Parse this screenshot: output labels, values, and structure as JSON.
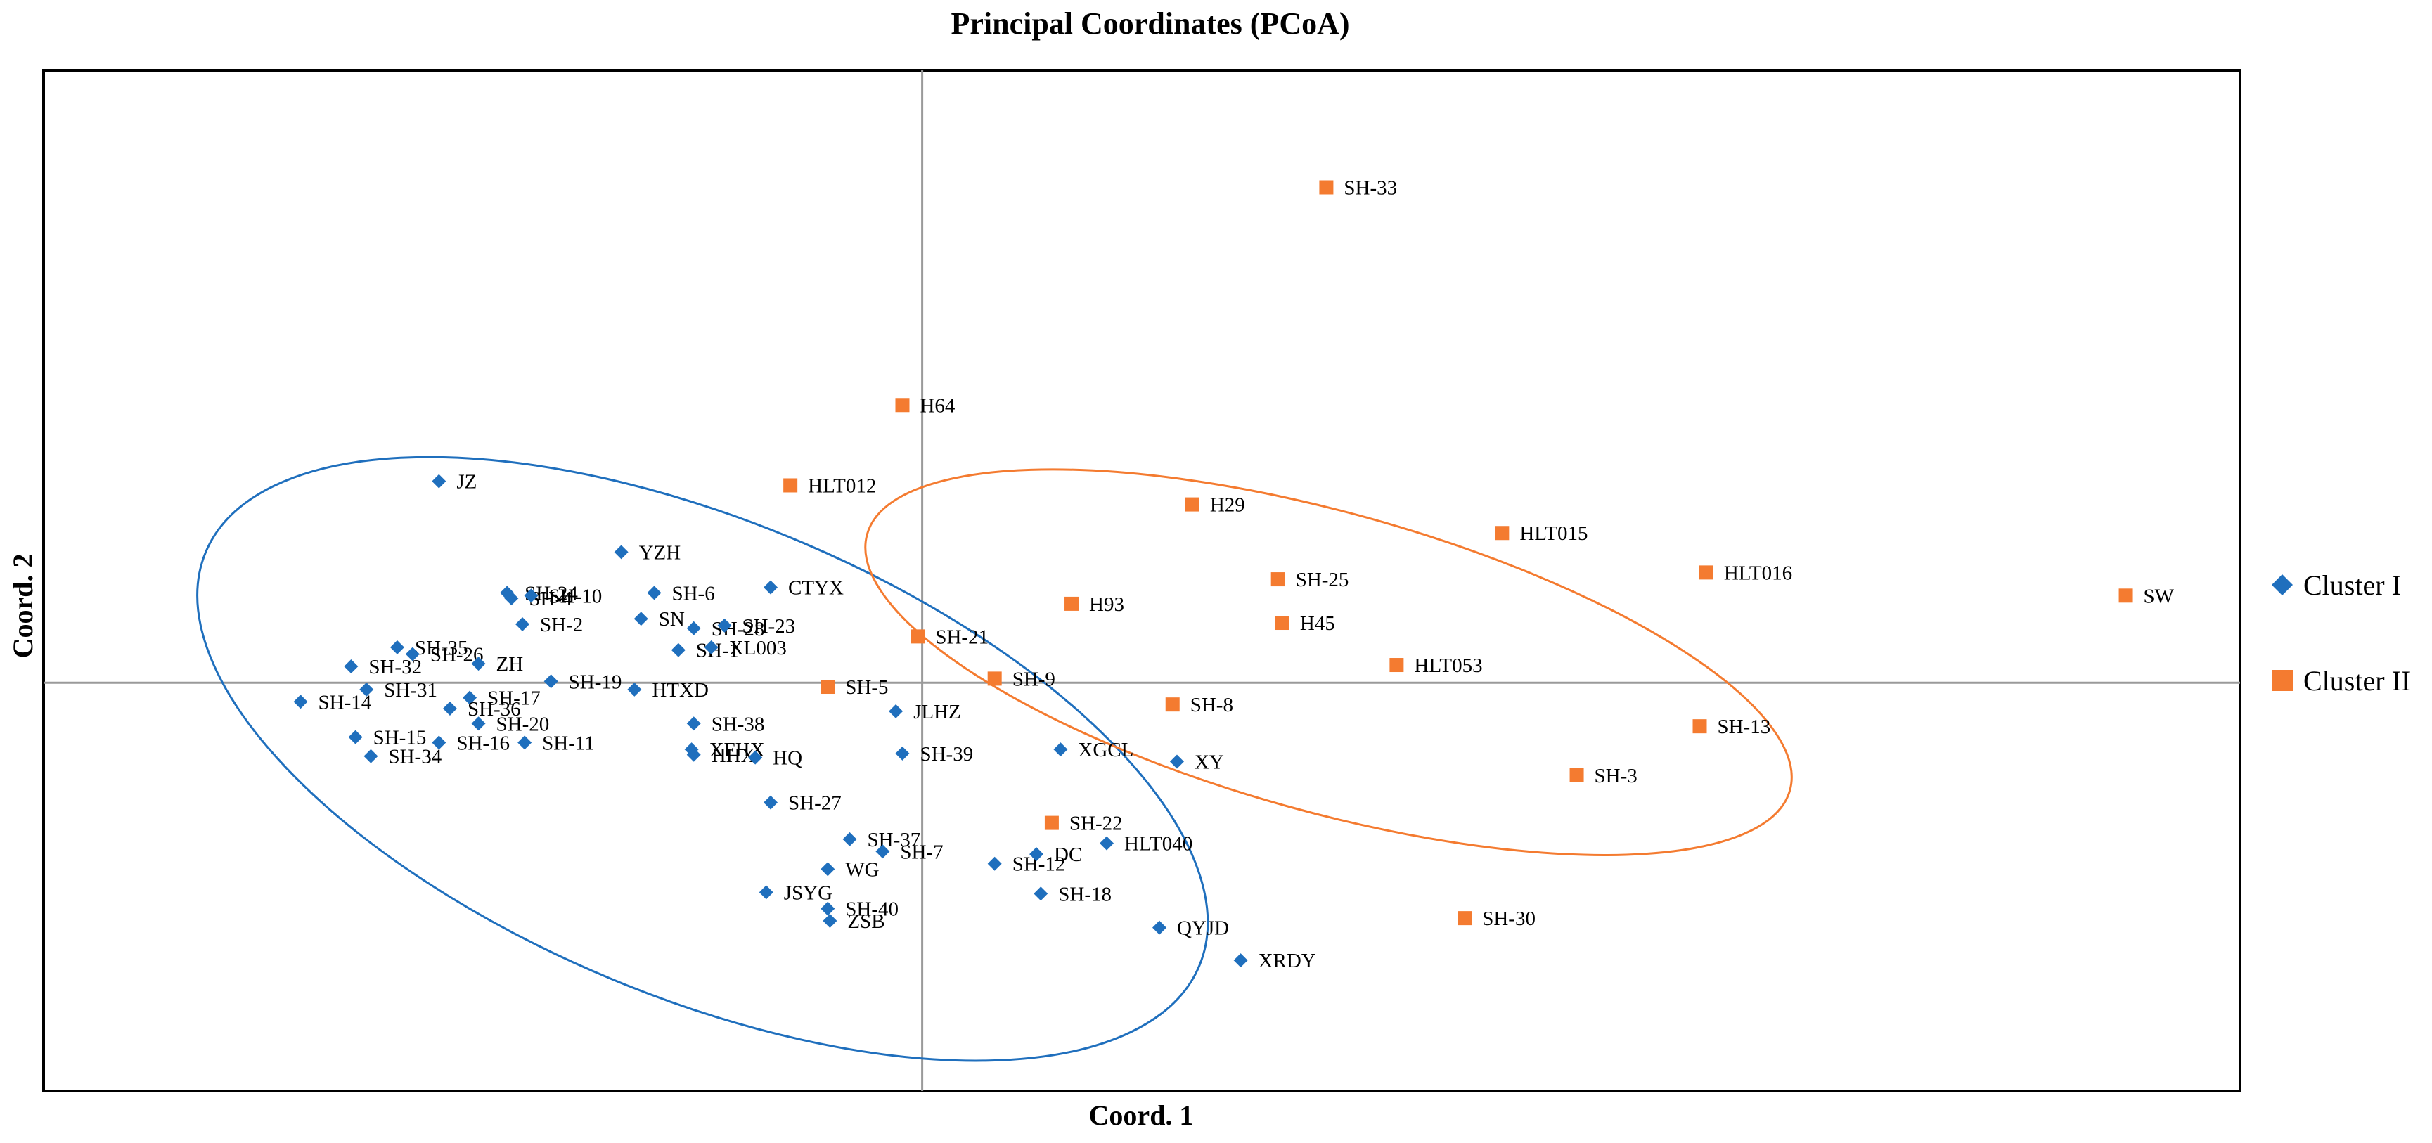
{
  "chart_data": {
    "type": "scatter",
    "title": "Principal Coordinates (PCoA)",
    "xlabel": "Coord. 1",
    "ylabel": "Coord. 2",
    "xlim": [
      -0.4,
      0.6
    ],
    "ylim": [
      -0.3,
      0.45
    ],
    "axis_lines_at_zero": true,
    "legend_position": "right",
    "series": [
      {
        "name": "Cluster I",
        "marker": "diamond",
        "color": "#1f6fbd",
        "points": [
          {
            "label": "JZ",
            "x": -0.22,
            "y": 0.148
          },
          {
            "label": "YZH",
            "x": -0.137,
            "y": 0.096
          },
          {
            "label": "SH-24",
            "x": -0.189,
            "y": 0.066
          },
          {
            "label": "SH-4",
            "x": -0.187,
            "y": 0.062
          },
          {
            "label": "SH-10",
            "x": -0.178,
            "y": 0.064
          },
          {
            "label": "SH-2",
            "x": -0.182,
            "y": 0.043
          },
          {
            "label": "SH-6",
            "x": -0.122,
            "y": 0.066
          },
          {
            "label": "CTYX",
            "x": -0.069,
            "y": 0.07
          },
          {
            "label": "SN",
            "x": -0.128,
            "y": 0.047
          },
          {
            "label": "SH-28",
            "x": -0.104,
            "y": 0.04
          },
          {
            "label": "SH-23",
            "x": -0.09,
            "y": 0.042
          },
          {
            "label": "SH-1",
            "x": -0.111,
            "y": 0.024
          },
          {
            "label": "XL003",
            "x": -0.096,
            "y": 0.026
          },
          {
            "label": "SH-35",
            "x": -0.239,
            "y": 0.026
          },
          {
            "label": "SH-26",
            "x": -0.232,
            "y": 0.021
          },
          {
            "label": "SH-32",
            "x": -0.26,
            "y": 0.012
          },
          {
            "label": "ZH",
            "x": -0.202,
            "y": 0.014
          },
          {
            "label": "SH-31",
            "x": -0.253,
            "y": -0.005
          },
          {
            "label": "SH-17",
            "x": -0.206,
            "y": -0.011
          },
          {
            "label": "SH-19",
            "x": -0.169,
            "y": 0.001
          },
          {
            "label": "HTXD",
            "x": -0.131,
            "y": -0.005
          },
          {
            "label": "SH-14",
            "x": -0.283,
            "y": -0.014
          },
          {
            "label": "SH-36",
            "x": -0.215,
            "y": -0.019
          },
          {
            "label": "SH-20",
            "x": -0.202,
            "y": -0.03
          },
          {
            "label": "SH-38",
            "x": -0.104,
            "y": -0.03
          },
          {
            "label": "JLHZ",
            "x": -0.012,
            "y": -0.021
          },
          {
            "label": "SH-15",
            "x": -0.258,
            "y": -0.04
          },
          {
            "label": "SH-16",
            "x": -0.22,
            "y": -0.044
          },
          {
            "label": "SH-11",
            "x": -0.181,
            "y": -0.044
          },
          {
            "label": "XFHX",
            "x": -0.105,
            "y": -0.049
          },
          {
            "label": "HHX",
            "x": -0.104,
            "y": -0.053
          },
          {
            "label": "HQ",
            "x": -0.076,
            "y": -0.055
          },
          {
            "label": "SH-39",
            "x": -0.009,
            "y": -0.052
          },
          {
            "label": "SH-34",
            "x": -0.251,
            "y": -0.054
          },
          {
            "label": "XGCL",
            "x": 0.063,
            "y": -0.049
          },
          {
            "label": "XY",
            "x": 0.116,
            "y": -0.058
          },
          {
            "label": "SH-27",
            "x": -0.069,
            "y": -0.088
          },
          {
            "label": "SH-37",
            "x": -0.033,
            "y": -0.115
          },
          {
            "label": "SH-7",
            "x": -0.018,
            "y": -0.124
          },
          {
            "label": "HLT040",
            "x": 0.084,
            "y": -0.118
          },
          {
            "label": "SH-12",
            "x": 0.033,
            "y": -0.133
          },
          {
            "label": "DC",
            "x": 0.052,
            "y": -0.126
          },
          {
            "label": "WG",
            "x": -0.043,
            "y": -0.137
          },
          {
            "label": "JSYG",
            "x": -0.071,
            "y": -0.154
          },
          {
            "label": "SH-18",
            "x": 0.054,
            "y": -0.155
          },
          {
            "label": "SH-40",
            "x": -0.043,
            "y": -0.166
          },
          {
            "label": "ZSB",
            "x": -0.042,
            "y": -0.175
          },
          {
            "label": "QYJD",
            "x": 0.108,
            "y": -0.18
          },
          {
            "label": "XRDY",
            "x": 0.145,
            "y": -0.204
          }
        ]
      },
      {
        "name": "Cluster II",
        "marker": "square",
        "color": "#f47b30",
        "points": [
          {
            "label": "SH-33",
            "x": 0.184,
            "y": 0.364
          },
          {
            "label": "H64",
            "x": -0.009,
            "y": 0.204
          },
          {
            "label": "HLT012",
            "x": -0.06,
            "y": 0.145
          },
          {
            "label": "H29",
            "x": 0.123,
            "y": 0.131
          },
          {
            "label": "HLT015",
            "x": 0.264,
            "y": 0.11
          },
          {
            "label": "HLT016",
            "x": 0.357,
            "y": 0.081
          },
          {
            "label": "SW",
            "x": 0.548,
            "y": 0.064
          },
          {
            "label": "SH-25",
            "x": 0.162,
            "y": 0.076
          },
          {
            "label": "H93",
            "x": 0.068,
            "y": 0.058
          },
          {
            "label": "H45",
            "x": 0.164,
            "y": 0.044
          },
          {
            "label": "SH-21",
            "x": -0.002,
            "y": 0.034
          },
          {
            "label": "HLT053",
            "x": 0.216,
            "y": 0.013
          },
          {
            "label": "SH-9",
            "x": 0.033,
            "y": 0.003
          },
          {
            "label": "SH-5",
            "x": -0.043,
            "y": -0.003
          },
          {
            "label": "SH-8",
            "x": 0.114,
            "y": -0.016
          },
          {
            "label": "SH-13",
            "x": 0.354,
            "y": -0.032
          },
          {
            "label": "SH-3",
            "x": 0.298,
            "y": -0.068
          },
          {
            "label": "SH-22",
            "x": 0.059,
            "y": -0.103
          },
          {
            "label": "SH-30",
            "x": 0.247,
            "y": -0.173
          }
        ]
      }
    ],
    "ellipses": [
      {
        "series": "Cluster I",
        "center": [
          -0.1,
          -0.056
        ],
        "rx": 0.245,
        "ry": 0.175,
        "rotation_deg": 22.6,
        "color": "#1f6fbd"
      },
      {
        "series": "Cluster II",
        "center": [
          0.185,
          0.015
        ],
        "rx": 0.218,
        "ry": 0.11,
        "rotation_deg": 15.5,
        "color": "#f47b30"
      }
    ]
  }
}
